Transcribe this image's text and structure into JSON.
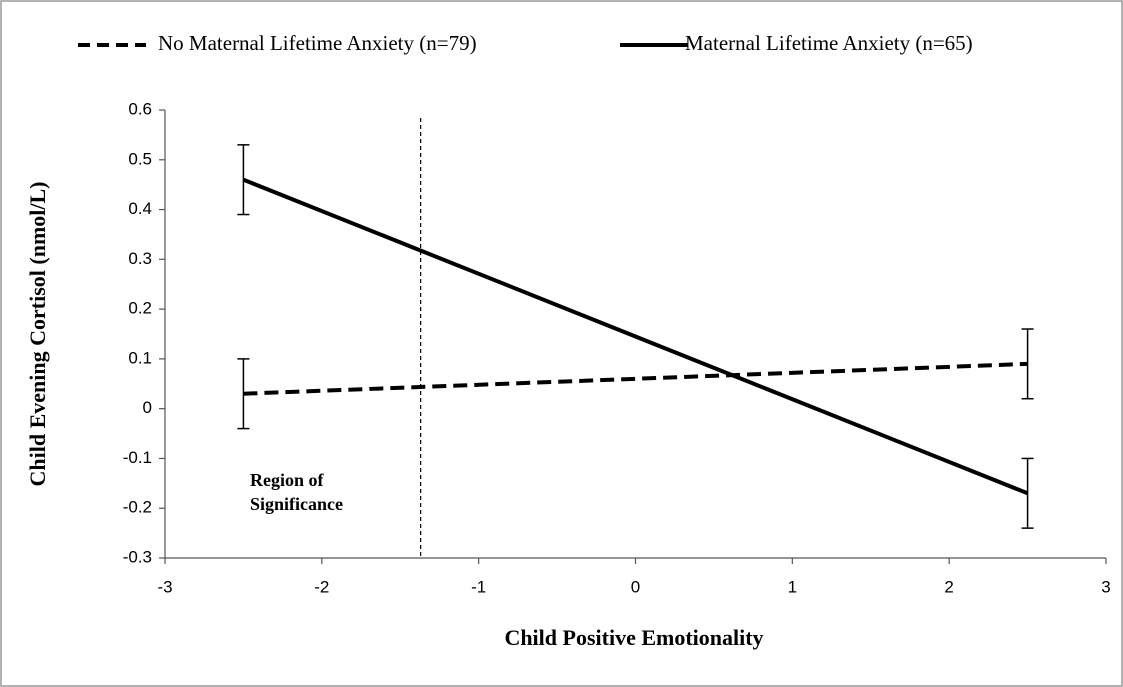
{
  "chart_data": {
    "type": "line",
    "xlabel": "Child Positive Emotionality",
    "ylabel": "Child Evening Cortisol (nmol/L)",
    "x": [
      -2.5,
      2.5
    ],
    "series": [
      {
        "name": "No Maternal Lifetime Anxiety (n=79)",
        "color": "#000000",
        "dash": true,
        "values": [
          0.03,
          0.09
        ],
        "errors": [
          0.07,
          0.07
        ]
      },
      {
        "name": "Maternal Lifetime Anxiety (n=65)",
        "color": "#000000",
        "dash": false,
        "values": [
          0.46,
          -0.17
        ],
        "errors": [
          0.07,
          0.07
        ]
      }
    ],
    "xlim": [
      -3,
      3
    ],
    "xticks": [
      -3,
      -2,
      -1,
      0,
      1,
      2,
      3
    ],
    "ylim": [
      -0.3,
      0.6
    ],
    "yticks": [
      -0.3,
      -0.2,
      -0.1,
      0,
      0.1,
      0.2,
      0.3,
      0.4,
      0.5,
      0.6
    ],
    "reference_x": -1.37,
    "annotation": "Region of Significance",
    "grid": false,
    "legend": "top"
  }
}
